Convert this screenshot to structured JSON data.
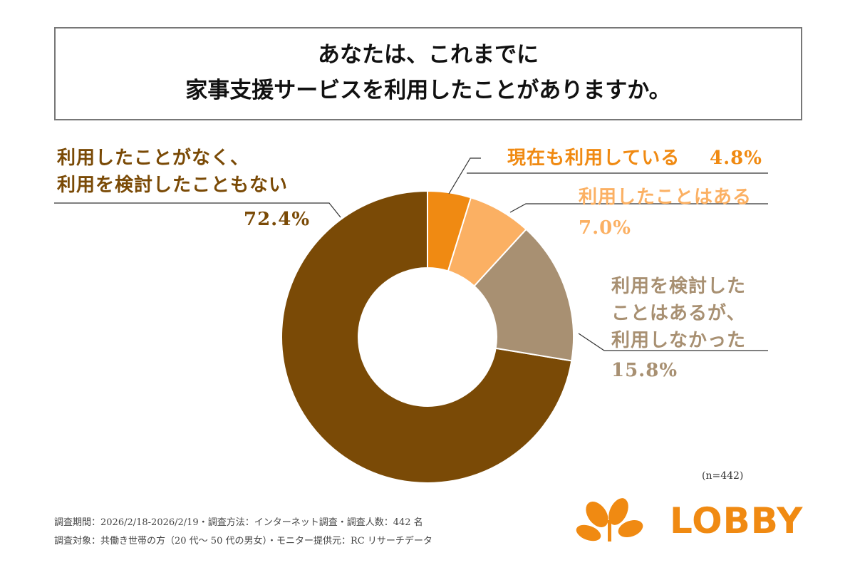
{
  "chart_data": {
    "type": "donut",
    "title": "あなたは、これまでに\n家事支援サービスを利用したことがありますか。",
    "categories": [
      "現在も利用している",
      "利用したことはある",
      "利用を検討した\nことはあるが、\n利用しなかった",
      "利用したことがなく、\n利用を検討したこともない"
    ],
    "values": [
      4.8,
      7.0,
      15.8,
      72.4
    ],
    "value_labels": [
      "4.8%",
      "7.0%",
      "15.8%",
      "72.4%"
    ],
    "colors": [
      "#f08a12",
      "#fbb063",
      "#a89072",
      "#7a4a06"
    ],
    "sample_note": "(n=442)"
  },
  "notes": [
    "調査期間：2026/2/18-2026/2/19・調査方法：インターネット調査・調査人数：442 名",
    "調査対象：共働き世帯の方（20 代〜 50 代の男女）・モニター提供元：RC リサーチデータ"
  ],
  "logo": "LOBBY"
}
